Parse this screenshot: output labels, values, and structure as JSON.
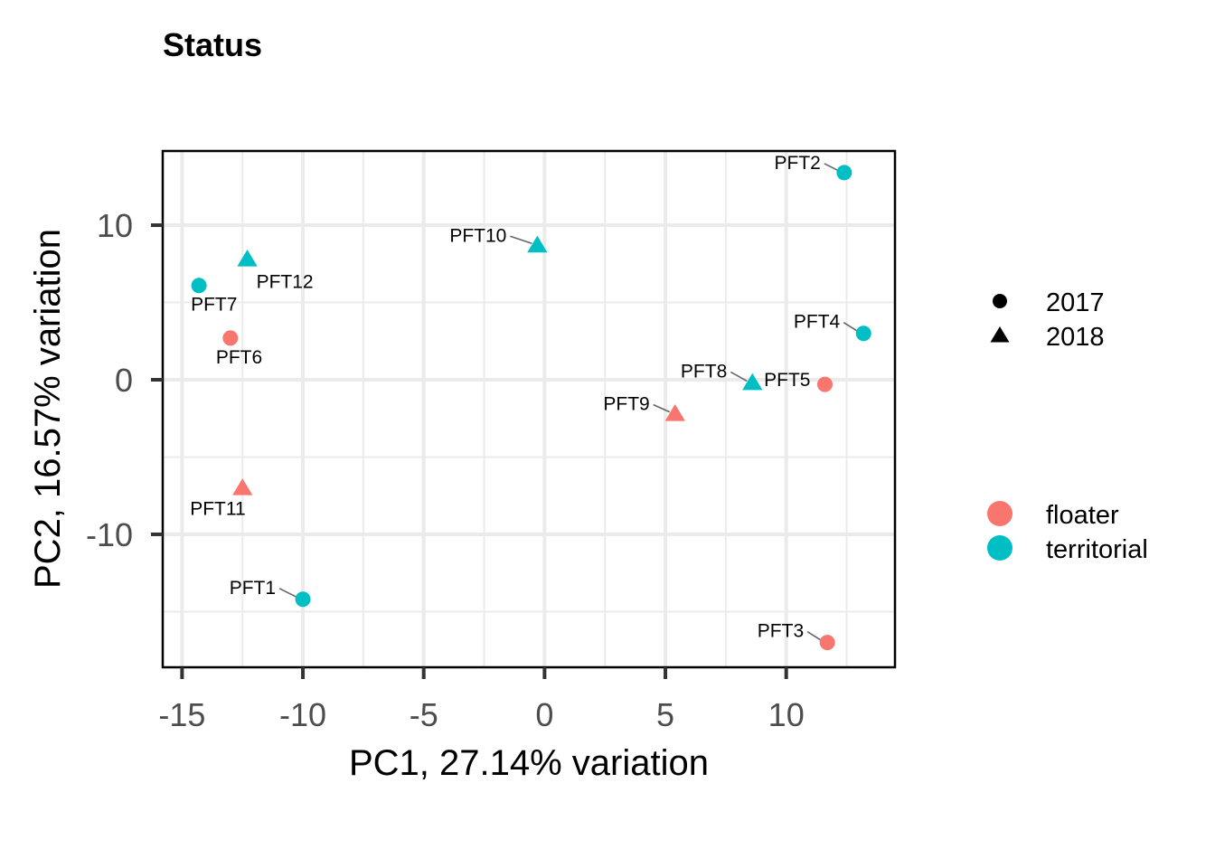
{
  "chart_data": {
    "type": "scatter",
    "title": "Status",
    "xlabel": "PC1, 27.14% variation",
    "ylabel": "PC2, 16.57% variation",
    "xlim": [
      -15.8,
      14.5
    ],
    "ylim": [
      -18.6,
      14.8
    ],
    "x_ticks": [
      -15,
      -10,
      -5,
      0,
      5,
      10
    ],
    "x_tick_labels": [
      "-15",
      "-10",
      "-5",
      "0",
      "5",
      "10"
    ],
    "y_ticks": [
      -10,
      0,
      10
    ],
    "y_tick_labels": [
      "-10",
      "0",
      "10"
    ],
    "grid": true,
    "colors": {
      "floater": "#F8766D",
      "territorial": "#00BFC4"
    },
    "legend_placement": "right",
    "legend_shape": [
      {
        "label": "2017",
        "shape": "circle"
      },
      {
        "label": "2018",
        "shape": "triangle"
      }
    ],
    "legend_color": [
      {
        "label": "floater",
        "color": "#F8766D"
      },
      {
        "label": "territorial",
        "color": "#00BFC4"
      }
    ],
    "points": [
      {
        "label": "PFT1",
        "x": -10.0,
        "y": -14.2,
        "status": "territorial",
        "year": "2017"
      },
      {
        "label": "PFT2",
        "x": 12.4,
        "y": 13.4,
        "status": "territorial",
        "year": "2017"
      },
      {
        "label": "PFT3",
        "x": 11.7,
        "y": -17.0,
        "status": "floater",
        "year": "2017"
      },
      {
        "label": "PFT4",
        "x": 13.2,
        "y": 3.0,
        "status": "territorial",
        "year": "2017"
      },
      {
        "label": "PFT5",
        "x": 11.6,
        "y": -0.3,
        "status": "floater",
        "year": "2017"
      },
      {
        "label": "PFT6",
        "x": -13.0,
        "y": 2.7,
        "status": "floater",
        "year": "2017"
      },
      {
        "label": "PFT7",
        "x": -14.3,
        "y": 6.1,
        "status": "territorial",
        "year": "2017"
      },
      {
        "label": "PFT8",
        "x": 8.6,
        "y": -0.2,
        "status": "territorial",
        "year": "2018"
      },
      {
        "label": "PFT9",
        "x": 5.4,
        "y": -2.2,
        "status": "floater",
        "year": "2018"
      },
      {
        "label": "PFT10",
        "x": -0.3,
        "y": 8.7,
        "status": "territorial",
        "year": "2018"
      },
      {
        "label": "PFT11",
        "x": -12.5,
        "y": -7.0,
        "status": "floater",
        "year": "2018"
      },
      {
        "label": "PFT12",
        "x": -12.3,
        "y": 7.8,
        "status": "territorial",
        "year": "2018"
      }
    ]
  }
}
